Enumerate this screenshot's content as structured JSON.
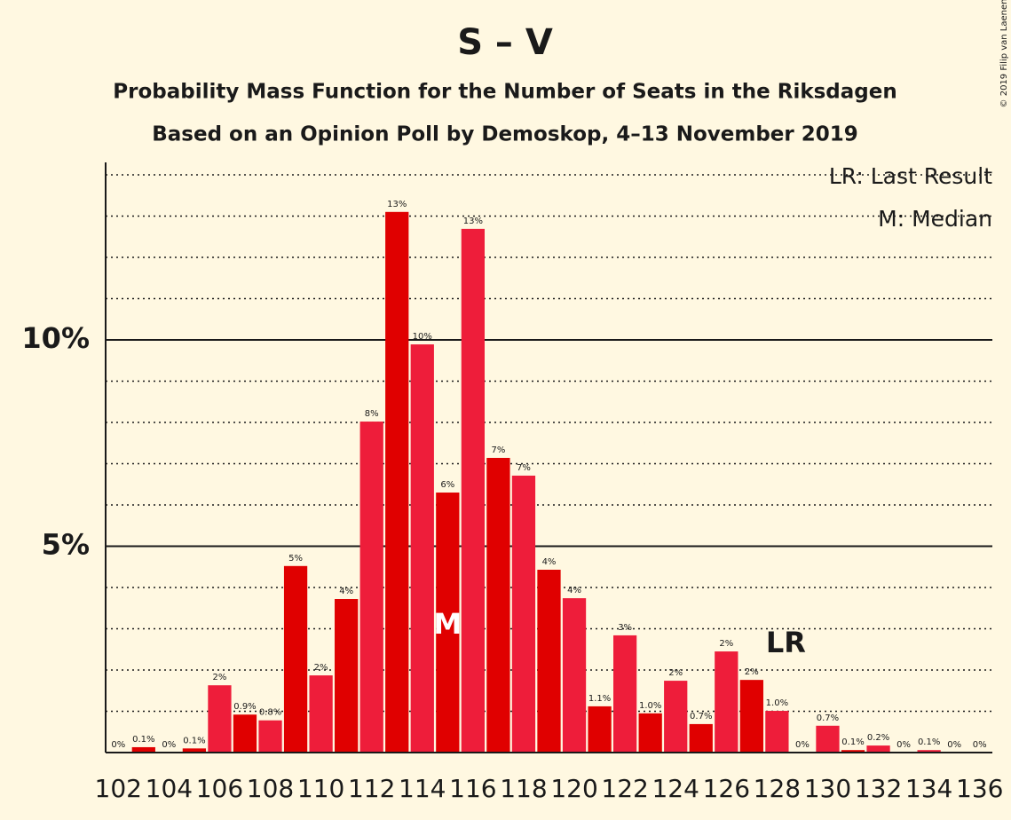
{
  "chart_data": {
    "type": "bar",
    "title": "S – V",
    "subtitle": "Probability Mass Function for the Number of Seats in the Riksdagen",
    "subtitle2": "Based on an Opinion Poll by Demoskop, 4–13 November 2019",
    "copyright": "© 2019 Filip van Laenen",
    "categories": [
      "102",
      null,
      "104",
      null,
      "106",
      null,
      "108",
      null,
      "110",
      null,
      "112",
      null,
      "114",
      null,
      "116",
      null,
      "118",
      null,
      "120",
      null,
      "122",
      null,
      "124",
      null,
      "126",
      null,
      "128",
      null,
      "130",
      null,
      "132",
      null,
      "134",
      null,
      "136"
    ],
    "values": [
      0,
      0.13,
      0,
      0.1,
      1.63,
      0.92,
      0.78,
      4.52,
      1.87,
      3.72,
      8.02,
      13.1,
      9.89,
      6.3,
      12.69,
      7.14,
      6.71,
      4.43,
      3.74,
      1.12,
      2.84,
      0.95,
      1.74,
      0.69,
      2.45,
      1.76,
      1.01,
      0,
      0.65,
      0.06,
      0.17,
      0,
      0.06,
      0,
      0
    ],
    "value_labels": [
      "0%",
      "0.1%",
      "0%",
      "0.1%",
      "2%",
      "0.9%",
      "0.8%",
      "5%",
      "2%",
      "4%",
      "8%",
      "13%",
      "10%",
      "6%",
      "13%",
      "7%",
      "7%",
      "4%",
      "4%",
      "1.1%",
      "3%",
      "1.0%",
      "2%",
      "0.7%",
      "2%",
      "2%",
      "1.0%",
      "0%",
      "0.7%",
      "0.1%",
      "0.2%",
      "0%",
      "0.1%",
      "0%",
      "0%"
    ],
    "colors": [
      "#ee1d3a",
      "#e00000"
    ],
    "ylim": [
      0,
      14.3
    ],
    "yticks": [
      {
        "value": 5,
        "label": "5%"
      },
      {
        "value": 10,
        "label": "10%"
      }
    ],
    "minor_yticks": [
      1,
      2,
      3,
      4,
      6,
      7,
      8,
      9,
      11,
      12,
      13,
      14
    ],
    "grid": true,
    "annotations": [
      {
        "text": "M",
        "category": "115",
        "color": "#ffffff"
      },
      {
        "text": "LR",
        "category": "128",
        "color": "#1a1a1a"
      }
    ],
    "legend": [
      "LR: Last Result",
      "M: Median"
    ]
  }
}
